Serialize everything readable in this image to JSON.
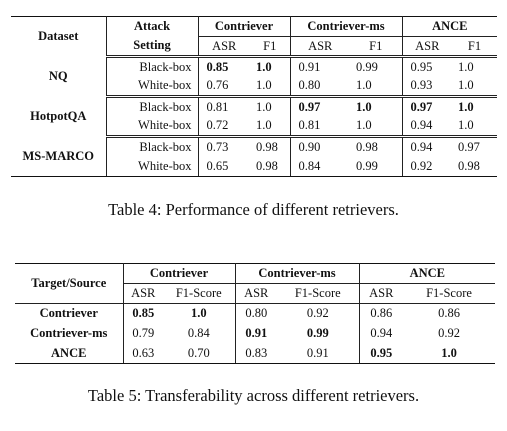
{
  "table4": {
    "headers": {
      "dataset": "Dataset",
      "attack_setting": [
        "Attack",
        "Setting"
      ],
      "retrievers": [
        "Contriever",
        "Contriever-ms",
        "ANCE"
      ],
      "metrics": [
        "ASR",
        "F1"
      ]
    },
    "groups": [
      {
        "dataset": "NQ",
        "rows": [
          {
            "setting": "Black-box",
            "values": [
              "0.85",
              "1.0",
              "0.91",
              "0.99",
              "0.95",
              "1.0"
            ],
            "bold": [
              true,
              true,
              false,
              false,
              false,
              false
            ]
          },
          {
            "setting": "White-box",
            "values": [
              "0.76",
              "1.0",
              "0.80",
              "1.0",
              "0.93",
              "1.0"
            ],
            "bold": [
              false,
              false,
              false,
              false,
              false,
              false
            ]
          }
        ]
      },
      {
        "dataset": "HotpotQA",
        "rows": [
          {
            "setting": "Black-box",
            "values": [
              "0.81",
              "1.0",
              "0.97",
              "1.0",
              "0.97",
              "1.0"
            ],
            "bold": [
              false,
              false,
              true,
              true,
              true,
              true
            ]
          },
          {
            "setting": "White-box",
            "values": [
              "0.72",
              "1.0",
              "0.81",
              "1.0",
              "0.94",
              "1.0"
            ],
            "bold": [
              false,
              false,
              false,
              false,
              false,
              false
            ]
          }
        ]
      },
      {
        "dataset": "MS-MARCO",
        "rows": [
          {
            "setting": "Black-box",
            "values": [
              "0.73",
              "0.98",
              "0.90",
              "0.98",
              "0.94",
              "0.97"
            ],
            "bold": [
              false,
              false,
              false,
              false,
              false,
              false
            ]
          },
          {
            "setting": "White-box",
            "values": [
              "0.65",
              "0.98",
              "0.84",
              "0.99",
              "0.92",
              "0.98"
            ],
            "bold": [
              false,
              false,
              false,
              false,
              false,
              false
            ]
          }
        ]
      }
    ],
    "caption": "Table 4: Performance of different retrievers."
  },
  "table5": {
    "headers": {
      "corner": "Target/Source",
      "sources": [
        "Contriever",
        "Contriever-ms",
        "ANCE"
      ],
      "metrics": [
        "ASR",
        "F1-Score"
      ]
    },
    "rows": [
      {
        "target": "Contriever",
        "values": [
          "0.85",
          "1.0",
          "0.80",
          "0.92",
          "0.86",
          "0.86"
        ],
        "bold": [
          true,
          true,
          false,
          false,
          false,
          false
        ]
      },
      {
        "target": "Contriever-ms",
        "values": [
          "0.79",
          "0.84",
          "0.91",
          "0.99",
          "0.94",
          "0.92"
        ],
        "bold": [
          false,
          false,
          true,
          true,
          false,
          false
        ]
      },
      {
        "target": "ANCE",
        "values": [
          "0.63",
          "0.70",
          "0.83",
          "0.91",
          "0.95",
          "1.0"
        ],
        "bold": [
          false,
          false,
          false,
          false,
          true,
          true
        ]
      }
    ],
    "caption": "Table 5: Transferability across different retrievers."
  }
}
